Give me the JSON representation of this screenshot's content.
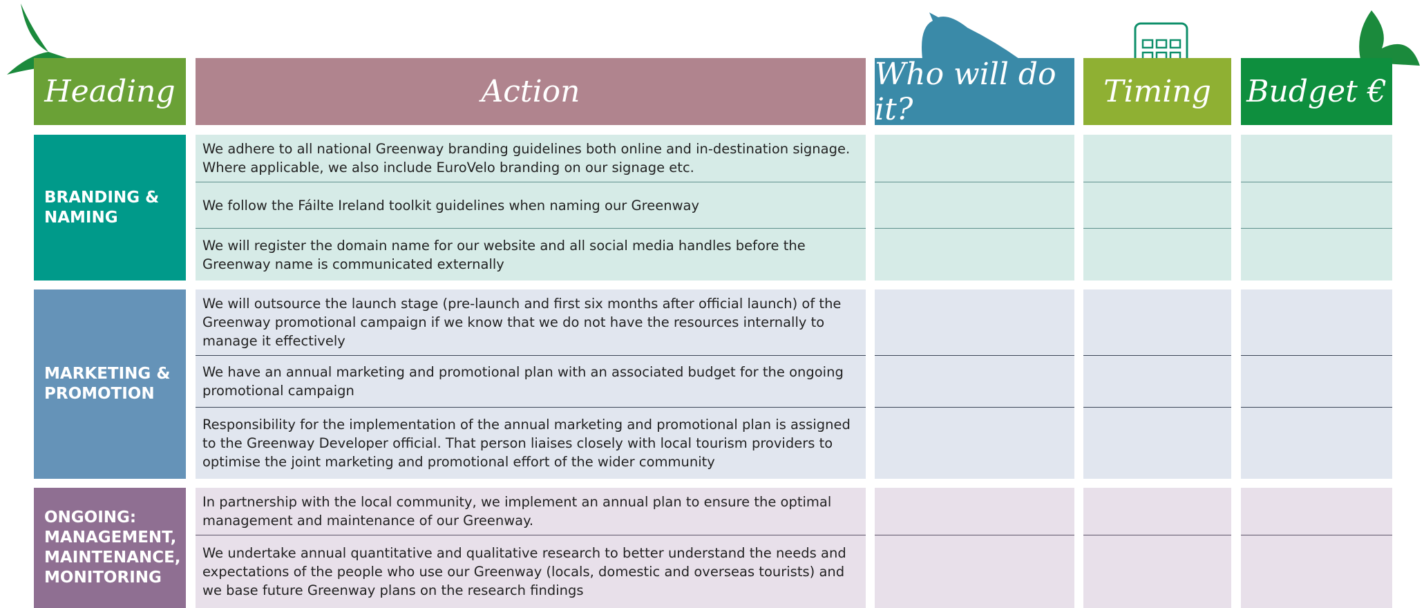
{
  "header": {
    "columns": [
      "Heading",
      "Action",
      "Who will do it?",
      "Timing",
      "Budget €"
    ]
  },
  "sections": [
    {
      "heading": "BRANDING & NAMING",
      "rows": [
        "We adhere to all national Greenway branding guidelines both online and in-destination signage. Where applicable, we also include EuroVelo branding on our signage etc.",
        "We follow the Fáilte Ireland toolkit guidelines when naming our Greenway",
        "We will register the domain name for our website and all social media handles before the Greenway name is communicated externally"
      ]
    },
    {
      "heading": "MARKETING & PROMOTION",
      "rows": [
        "We will outsource the launch stage (pre-launch and first six months after official launch) of the Greenway promotional campaign if we know that we do not have the resources internally to manage it effectively",
        "We have an annual marketing and promotional plan with an associated budget for the ongoing promotional campaign",
        "Responsibility for the implementation of the annual marketing and promotional plan is assigned to the Greenway Developer official. That person liaises closely with local tourism providers to optimise the joint marketing and promotional effort of the wider community"
      ]
    },
    {
      "heading": "ONGOING: MANAGEMENT, MAINTENANCE, MONITORING",
      "rows": [
        "In partnership with the local community, we implement an annual plan to ensure the optimal management and maintenance of our Greenway.",
        "We undertake annual quantitative and qualitative research to better understand the needs and expectations of the people who use our Greenway (locals, domestic and overseas tourists) and we base future Greenway plans on the research findings"
      ]
    }
  ]
}
